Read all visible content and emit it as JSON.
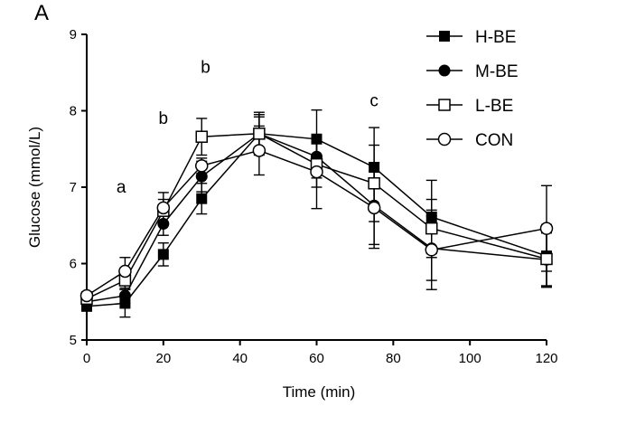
{
  "panel_label": "A",
  "chart_data": {
    "type": "line",
    "title": "",
    "xlabel": "Time (min)",
    "ylabel": "Glucose (mmol/L)",
    "xlim": [
      0,
      120
    ],
    "ylim": [
      5,
      9
    ],
    "xticks": [
      0,
      20,
      40,
      60,
      80,
      100,
      120
    ],
    "yticks": [
      5,
      6,
      7,
      8,
      9
    ],
    "grid": false,
    "legend_position": "top-right",
    "x": [
      0,
      10,
      20,
      30,
      45,
      60,
      75,
      90,
      120
    ],
    "series": [
      {
        "name": "H-BE",
        "marker": "filled-square",
        "y": [
          5.44,
          5.48,
          6.12,
          6.85,
          7.7,
          7.63,
          7.26,
          6.61,
          6.1
        ],
        "err": [
          0.05,
          0.18,
          0.15,
          0.2,
          0.28,
          0.38,
          0.52,
          0.48,
          0.41
        ]
      },
      {
        "name": "M-BE",
        "marker": "filled-circle",
        "y": [
          5.5,
          5.58,
          6.52,
          7.14,
          7.7,
          7.4,
          6.76,
          6.2,
          6.05
        ],
        "err": [
          0.05,
          0.1,
          0.15,
          0.2,
          0.22,
          0.28,
          0.56,
          0.42,
          0.35
        ]
      },
      {
        "name": "L-BE",
        "marker": "open-square",
        "y": [
          5.54,
          5.78,
          6.69,
          7.66,
          7.7,
          7.3,
          7.05,
          6.46,
          6.06
        ],
        "err": [
          0.06,
          0.12,
          0.15,
          0.24,
          0.25,
          0.3,
          0.5,
          0.38,
          0.35
        ]
      },
      {
        "name": "CON",
        "marker": "open-circle",
        "y": [
          5.58,
          5.9,
          6.73,
          7.28,
          7.48,
          7.2,
          6.73,
          6.18,
          6.46
        ],
        "err": [
          0.05,
          0.18,
          0.2,
          0.1,
          0.32,
          0.48,
          0.48,
          0.52,
          0.56
        ]
      }
    ],
    "annotations": [
      {
        "text": "a",
        "x": 9,
        "y": 6.93
      },
      {
        "text": "b",
        "x": 20,
        "y": 7.83
      },
      {
        "text": "b",
        "x": 31,
        "y": 8.5
      },
      {
        "text": "c",
        "x": 75,
        "y": 8.06
      }
    ]
  }
}
